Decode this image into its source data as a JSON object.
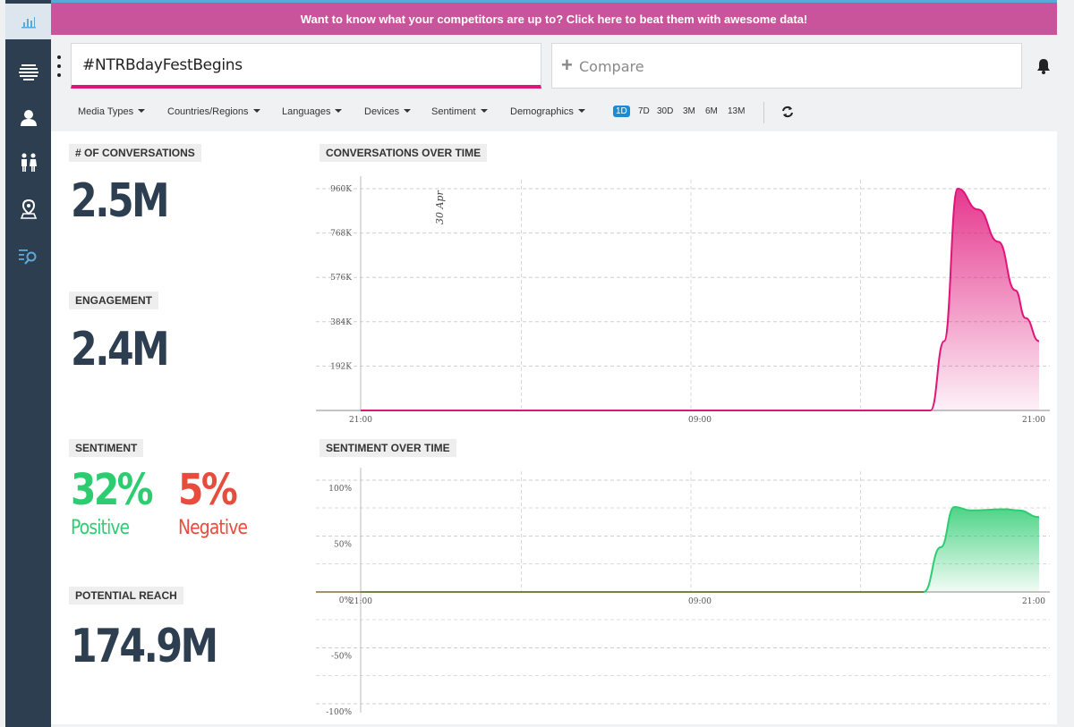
{
  "banner": {
    "text": "Want to know what your competitors are up to? Click here to beat them with awesome data!"
  },
  "search": {
    "value": "#NTRBdayFestBegins"
  },
  "compare": {
    "label": "Compare"
  },
  "filters": [
    "Media Types",
    "Countries/Regions",
    "Languages",
    "Devices",
    "Sentiment",
    "Demographics"
  ],
  "ranges": {
    "items": [
      "1D",
      "7D",
      "30D",
      "3M",
      "6M",
      "13M"
    ],
    "selected": "1D"
  },
  "metrics": {
    "conversations": {
      "label": "# OF CONVERSATIONS",
      "value": "2.5M"
    },
    "engagement": {
      "label": "ENGAGEMENT",
      "value": "2.4M"
    },
    "sentiment": {
      "label": "SENTIMENT",
      "positive_value": "32%",
      "positive_label": "Positive",
      "negative_value": "5%",
      "negative_label": "Negative"
    },
    "reach": {
      "label": "POTENTIAL REACH",
      "value": "174.9M"
    }
  },
  "colors": {
    "accent": "#e0157a",
    "positive": "#2ecc71",
    "negative": "#e74c3c",
    "sidebar": "#2c3e50",
    "banner": "#c9549b"
  },
  "sidebar_icons": [
    "bar-chart-icon",
    "list-icon",
    "user-icon",
    "people-icon",
    "location-icon",
    "search-list-icon"
  ],
  "chart_data": [
    {
      "type": "area",
      "title": "CONVERSATIONS OVER TIME",
      "ytick_labels": [
        "960K",
        "768K",
        "576K",
        "384K",
        "192K"
      ],
      "yticks": [
        960000,
        768000,
        576000,
        384000,
        192000
      ],
      "ylim": [
        0,
        960000
      ],
      "xtick_labels": [
        "21:00",
        "09:00",
        "21:00"
      ],
      "annotation": "30 Apr",
      "x": [
        0,
        0.84,
        0.86,
        0.88,
        0.91,
        0.94,
        0.965,
        0.98,
        1.0
      ],
      "y": [
        0,
        0,
        300000,
        960000,
        870000,
        730000,
        520000,
        400000,
        300000
      ],
      "color": "#e0157a"
    },
    {
      "type": "area",
      "title": "SENTIMENT OVER TIME",
      "ytick_labels": [
        "100%",
        "50%",
        "0%",
        "-50%",
        "-100%"
      ],
      "yticks": [
        100,
        50,
        0,
        -50,
        -100
      ],
      "ylim": [
        -100,
        100
      ],
      "xtick_labels": [
        "21:00",
        "09:00",
        "21:00"
      ],
      "x": [
        0,
        0.83,
        0.855,
        0.875,
        0.9,
        0.95,
        0.97,
        1.0
      ],
      "y": [
        0,
        0,
        40,
        76,
        73,
        74,
        73,
        67
      ],
      "color": "#2ecc71"
    }
  ]
}
